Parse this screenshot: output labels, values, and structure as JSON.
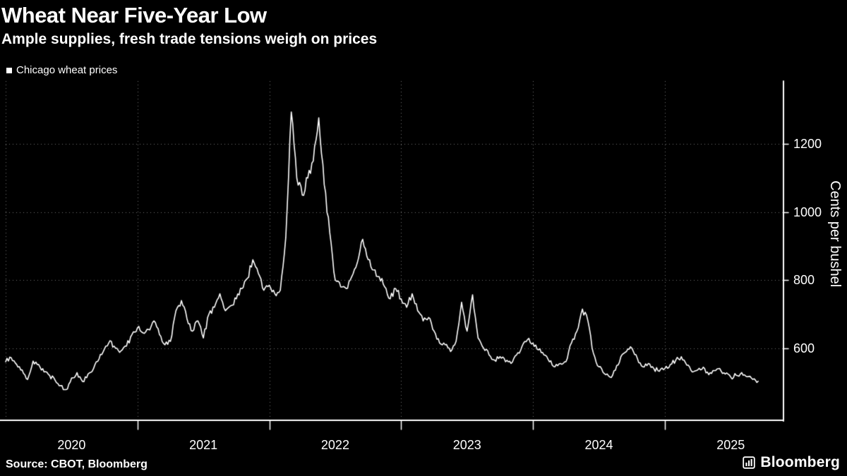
{
  "header": {
    "title": "Wheat Near Five-Year Low",
    "subtitle": "Ample supplies, fresh trade tensions weigh on prices"
  },
  "legend": {
    "marker_color": "#ffffff",
    "label": "Chicago wheat prices"
  },
  "footer": {
    "source": "Source: CBOT, Bloomberg",
    "brand": "Bloomberg"
  },
  "chart_data": {
    "type": "line",
    "title": "Wheat Near Five-Year Low",
    "subtitle": "Ample supplies, fresh trade tensions weigh on prices",
    "legend_entries": [
      "Chicago wheat prices"
    ],
    "ylabel": "Cents per bushel",
    "xlabel": "",
    "x_unit": "decimal_year",
    "xlim": [
      2020.0,
      2025.9
    ],
    "ylim": [
      390,
      1385
    ],
    "yticks": [
      600,
      800,
      1000,
      1200
    ],
    "xticks": [
      2020,
      2021,
      2022,
      2023,
      2024,
      2025
    ],
    "grid": "dotted",
    "background": "#000000",
    "line_color": "#ffffff",
    "axis_color": "#ffffff",
    "grid_color": "#9a9a9a",
    "series": [
      {
        "name": "Chicago wheat prices",
        "x_start": 2020.0,
        "x_step": 0.041667,
        "values": [
          560,
          572,
          552,
          536,
          508,
          562,
          552,
          530,
          520,
          506,
          490,
          478,
          512,
          528,
          502,
          524,
          540,
          568,
          598,
          622,
          600,
          592,
          606,
          640,
          660,
          645,
          655,
          680,
          640,
          610,
          620,
          710,
          740,
          687,
          650,
          680,
          630,
          700,
          720,
          760,
          710,
          725,
          745,
          775,
          805,
          860,
          820,
          770,
          785,
          760,
          770,
          926,
          1294,
          1100,
          1050,
          1100,
          1150,
          1277,
          1080,
          940,
          800,
          780,
          775,
          810,
          850,
          920,
          860,
          830,
          810,
          780,
          745,
          775,
          745,
          720,
          760,
          710,
          680,
          690,
          650,
          615,
          610,
          590,
          620,
          735,
          650,
          757,
          630,
          600,
          580,
          565,
          575,
          560,
          555,
          580,
          605,
          625,
          615,
          595,
          580,
          560,
          545,
          555,
          560,
          615,
          650,
          715,
          680,
          585,
          545,
          525,
          515,
          535,
          575,
          590,
          600,
          570,
          545,
          555,
          540,
          532,
          540,
          552,
          565,
          575,
          550,
          530,
          536,
          544,
          522,
          534,
          540,
          524,
          515,
          520,
          528,
          516,
          508,
          503
        ]
      }
    ]
  }
}
